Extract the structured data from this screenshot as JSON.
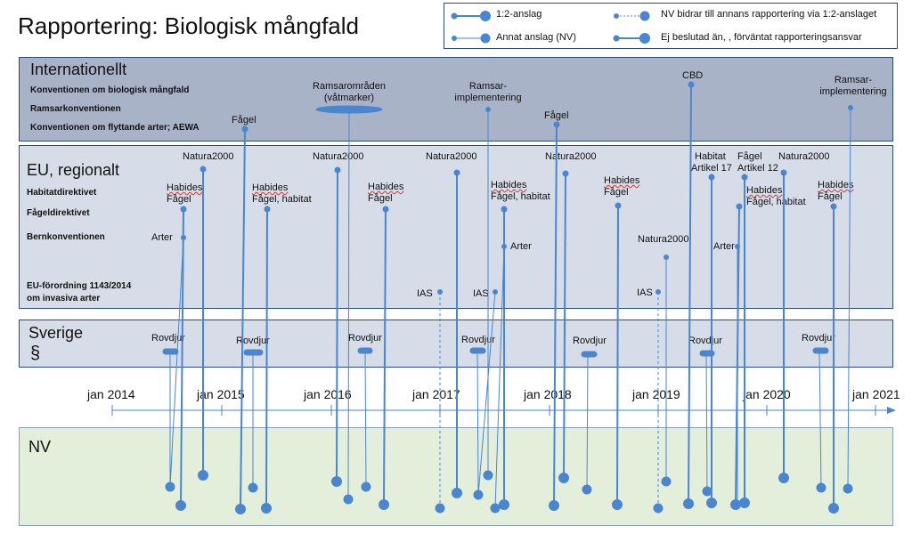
{
  "title": "Rapportering: Biologisk mångfald",
  "legend": {
    "solid_12": "1:2-anslag",
    "other": "Annat anslag (NV)",
    "dotted": "NV bidrar till annans rapportering via 1:2-anslaget",
    "undecided": "Ej beslutad än, , förväntat rapporteringsansvar"
  },
  "bands": {
    "intl": {
      "title": "Internationellt",
      "subs": [
        "Konventionen om biologisk mångfald",
        "Ramsarkonventionen",
        "Konventionen om flyttande arter; AEWA"
      ]
    },
    "eu": {
      "title": "EU, regionalt",
      "subs": [
        "Habitatdirektivet",
        "Fågeldirektivet",
        "Bernkonventionen",
        "EU-förordning 1143/2014",
        "om invasiva arter"
      ]
    },
    "se": {
      "title": "Sverige",
      "symbol": "§"
    },
    "nv": {
      "title": "NV"
    }
  },
  "timeline": [
    "jan 2014",
    "jan 2015",
    "jan 2016",
    "jan 2017",
    "jan 2018",
    "jan 2019",
    "jan 2020",
    "jan 2021"
  ],
  "labels": {
    "fagel_intl_1": "Fågel",
    "ramsar_omr": "Ramsarområden",
    "vatmarker": "(våtmarker)",
    "ramsar_impl_1a": "Ramsar-",
    "ramsar_impl_1b": "implementering",
    "fagel_intl_2": "Fågel",
    "cbd": "CBD",
    "ramsar_impl_2a": "Ramsar-",
    "ramsar_impl_2b": "implementering",
    "natura": "Natura2000",
    "habides": "Habides",
    "fagel": "Fågel",
    "fagel_habitat": "Fågel, habitat",
    "arter": "Arter",
    "ias": "IAS",
    "habitat": "Habitat",
    "artikel17": "Artikel 17",
    "artikel12": "Artikel 12",
    "rovdjur": "Rovdjur"
  },
  "colors": {
    "line": "#4a86cf",
    "band_border": "#2f4b7c"
  }
}
